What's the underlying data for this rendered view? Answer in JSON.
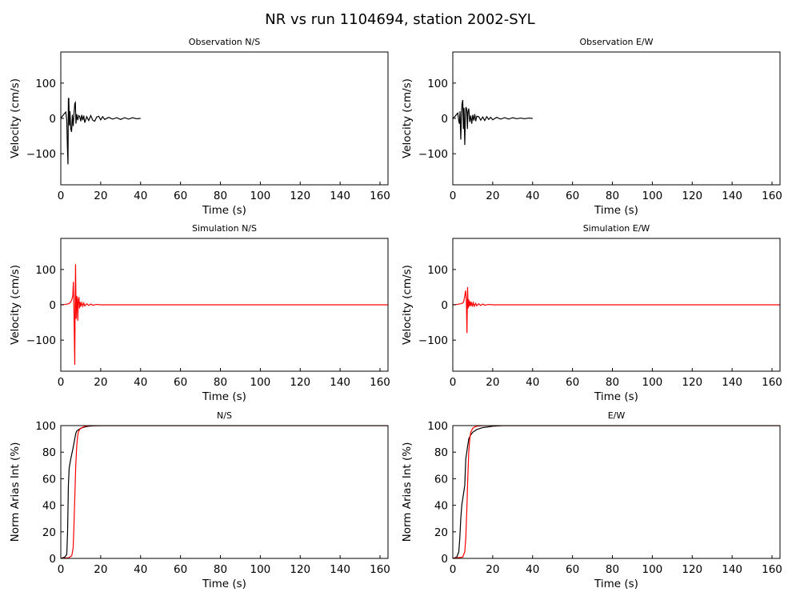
{
  "figure": {
    "title": "NR vs run 1104694, station 2002-SYL"
  },
  "colors": {
    "observation": "#000000",
    "simulation": "#ff0000"
  },
  "chart_data": [
    {
      "type": "line",
      "title": "Observation N/S",
      "xlabel": "Time (s)",
      "ylabel": "Velocity (cm/s)",
      "xlim": [
        0,
        164
      ],
      "ylim": [
        -188,
        188
      ],
      "xticks": [
        0,
        20,
        40,
        60,
        80,
        100,
        120,
        140,
        160
      ],
      "yticks": [
        -100,
        0,
        100
      ],
      "series": [
        {
          "color": "#000000",
          "x": [
            0,
            1,
            2,
            2.5,
            3,
            3.3,
            3.6,
            3.8,
            4,
            4.3,
            4.6,
            5,
            5.4,
            5.8,
            6.2,
            6.6,
            7,
            7.3,
            7.6,
            8,
            8.5,
            9,
            9.5,
            10,
            10.5,
            11,
            11.5,
            12,
            13,
            14,
            15,
            16,
            17,
            18,
            19,
            20,
            21,
            22,
            24,
            26,
            28,
            30,
            32,
            34,
            36,
            38,
            40
          ],
          "y": [
            0,
            8,
            15,
            18,
            -5,
            -80,
            -130,
            55,
            58,
            -20,
            20,
            -30,
            -38,
            10,
            -22,
            12,
            42,
            45,
            -15,
            12,
            -5,
            8,
            5,
            -8,
            10,
            -5,
            8,
            -12,
            5,
            -6,
            8,
            -5,
            -8,
            4,
            6,
            -4,
            5,
            -3,
            3,
            -2,
            2,
            -3,
            2,
            -2,
            2,
            -1,
            0
          ]
        }
      ]
    },
    {
      "type": "line",
      "title": "Observation E/W",
      "xlabel": "Time (s)",
      "ylabel": "Velocity (cm/s)",
      "xlim": [
        0,
        164
      ],
      "ylim": [
        -188,
        188
      ],
      "xticks": [
        0,
        20,
        40,
        60,
        80,
        100,
        120,
        140,
        160
      ],
      "yticks": [
        -100,
        0,
        100
      ],
      "series": [
        {
          "color": "#000000",
          "x": [
            0,
            1,
            2,
            2.5,
            3,
            3.3,
            3.6,
            4,
            4.3,
            4.6,
            5,
            5.3,
            5.6,
            6,
            6.3,
            6.6,
            7,
            7.3,
            7.6,
            8,
            8.5,
            9,
            9.5,
            10,
            10.5,
            11,
            11.5,
            12,
            13,
            14,
            15,
            16,
            17,
            18,
            19,
            20,
            22,
            24,
            26,
            28,
            30,
            32,
            34,
            36,
            38,
            40
          ],
          "y": [
            0,
            5,
            12,
            15,
            -8,
            -15,
            20,
            -60,
            5,
            40,
            52,
            -30,
            30,
            -75,
            10,
            32,
            25,
            -30,
            18,
            28,
            -10,
            8,
            -15,
            10,
            -6,
            12,
            -8,
            6,
            5,
            -5,
            4,
            -6,
            5,
            -3,
            3,
            -4,
            3,
            -2,
            2,
            -2,
            2,
            -1,
            1,
            -1,
            1,
            0
          ]
        }
      ]
    },
    {
      "type": "line",
      "title": "Simulation N/S",
      "xlabel": "Time (s)",
      "ylabel": "Velocity (cm/s)",
      "xlim": [
        0,
        164
      ],
      "ylim": [
        -188,
        188
      ],
      "xticks": [
        0,
        20,
        40,
        60,
        80,
        100,
        120,
        140,
        160
      ],
      "yticks": [
        -100,
        0,
        100
      ],
      "series": [
        {
          "color": "#ff0000",
          "x": [
            0,
            2,
            4,
            5,
            5.5,
            6,
            6.3,
            6.6,
            7,
            7.2,
            7.4,
            7.7,
            8,
            8.2,
            8.5,
            8.8,
            9.1,
            9.4,
            9.7,
            10,
            10.5,
            11,
            11.5,
            12,
            13,
            14,
            15,
            16,
            18,
            20,
            25,
            30,
            40,
            60,
            80,
            100,
            120,
            140,
            164
          ],
          "y": [
            0,
            1,
            3,
            8,
            15,
            25,
            65,
            -20,
            -170,
            10,
            115,
            -40,
            25,
            20,
            -45,
            15,
            22,
            -10,
            8,
            -5,
            6,
            -4,
            5,
            -3,
            3,
            -2,
            2,
            -1,
            1,
            0,
            0,
            0,
            0,
            0,
            0,
            0,
            0,
            0,
            0
          ]
        }
      ]
    },
    {
      "type": "line",
      "title": "Simulation E/W",
      "xlabel": "Time (s)",
      "ylabel": "Velocity (cm/s)",
      "xlim": [
        0,
        164
      ],
      "ylim": [
        -188,
        188
      ],
      "xticks": [
        0,
        20,
        40,
        60,
        80,
        100,
        120,
        140,
        160
      ],
      "yticks": [
        -100,
        0,
        100
      ],
      "series": [
        {
          "color": "#ff0000",
          "x": [
            0,
            2,
            4,
            5,
            5.5,
            6,
            6.4,
            6.8,
            7.1,
            7.4,
            7.7,
            8,
            8.3,
            8.7,
            9,
            9.4,
            9.8,
            10.3,
            10.8,
            11.5,
            12,
            13,
            14,
            15,
            16,
            18,
            20,
            25,
            30,
            40,
            60,
            80,
            100,
            120,
            140,
            164
          ],
          "y": [
            0,
            1,
            3,
            5,
            10,
            25,
            40,
            10,
            -80,
            50,
            -10,
            15,
            -5,
            10,
            -3,
            8,
            -5,
            6,
            -4,
            4,
            -3,
            3,
            -2,
            2,
            -1,
            1,
            0,
            0,
            0,
            0,
            0,
            0,
            0,
            0,
            0,
            0
          ]
        }
      ]
    },
    {
      "type": "line",
      "title": "N/S",
      "xlabel": "Time (s)",
      "ylabel": "Norm Arias Int (%)",
      "xlim": [
        0,
        164
      ],
      "ylim": [
        0,
        100
      ],
      "xticks": [
        0,
        20,
        40,
        60,
        80,
        100,
        120,
        140,
        160
      ],
      "yticks": [
        0,
        20,
        40,
        60,
        80,
        100
      ],
      "series": [
        {
          "color": "#000000",
          "x": [
            0,
            2,
            3,
            3.4,
            3.8,
            4.2,
            5,
            6,
            6.5,
            7,
            7.5,
            8,
            9,
            10,
            12,
            14,
            16,
            20,
            164
          ],
          "y": [
            0,
            1,
            3,
            20,
            55,
            68,
            75,
            82,
            86,
            90,
            94,
            96,
            97,
            98,
            99,
            99.5,
            99.8,
            100,
            100
          ]
        },
        {
          "color": "#ff0000",
          "x": [
            0,
            4,
            5.5,
            6.2,
            6.6,
            7,
            7.5,
            8,
            8.5,
            9,
            10,
            12,
            15,
            20,
            164
          ],
          "y": [
            0,
            0.5,
            2,
            8,
            25,
            45,
            70,
            85,
            93,
            96,
            98,
            99.5,
            100,
            100,
            100
          ]
        }
      ]
    },
    {
      "type": "line",
      "title": "E/W",
      "xlabel": "Time (s)",
      "ylabel": "Norm Arias Int (%)",
      "xlim": [
        0,
        164
      ],
      "ylim": [
        0,
        100
      ],
      "xticks": [
        0,
        20,
        40,
        60,
        80,
        100,
        120,
        140,
        160
      ],
      "yticks": [
        0,
        20,
        40,
        60,
        80,
        100
      ],
      "series": [
        {
          "color": "#000000",
          "x": [
            0,
            2,
            3,
            3.5,
            4,
            4.5,
            5,
            5.5,
            6,
            6.5,
            7,
            7.5,
            8,
            9,
            10,
            12,
            15,
            20,
            25,
            164
          ],
          "y": [
            0,
            1,
            5,
            15,
            30,
            40,
            45,
            50,
            55,
            75,
            80,
            85,
            90,
            93,
            95,
            97,
            98.5,
            99.5,
            100,
            100
          ]
        },
        {
          "color": "#ff0000",
          "x": [
            0,
            5,
            6,
            6.5,
            7,
            7.5,
            8,
            8.5,
            9,
            10,
            11,
            12,
            15,
            20,
            164
          ],
          "y": [
            0,
            1,
            5,
            15,
            35,
            60,
            80,
            90,
            95,
            98,
            99,
            99.5,
            100,
            100,
            100
          ]
        }
      ]
    }
  ]
}
